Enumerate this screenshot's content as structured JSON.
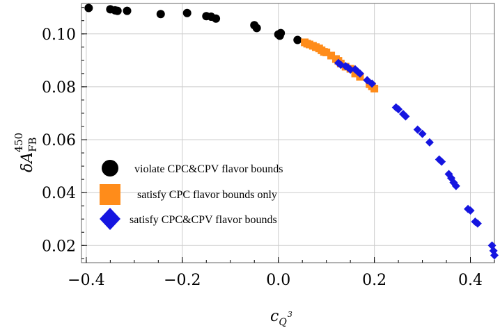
{
  "chart_data": {
    "type": "scatter",
    "xlabel": "c",
    "xlabel_sub": "Q",
    "xlabel_sup": "3",
    "ylabel": "δA",
    "ylabel_sub": "FB",
    "ylabel_sup": "450",
    "xlim": [
      -0.41,
      0.45
    ],
    "ylim": [
      0.0135,
      0.1115
    ],
    "xticks": [
      -0.4,
      -0.2,
      0.0,
      0.2,
      0.4
    ],
    "xtick_labels": [
      "−0.4",
      "−0.2",
      "0.0",
      "0.2",
      "0.4"
    ],
    "yticks": [
      0.02,
      0.04,
      0.06,
      0.08,
      0.1
    ],
    "ytick_labels": [
      "0.02",
      "0.04",
      "0.06",
      "0.08",
      "0.10"
    ],
    "grid": true,
    "legend_position": "lower-left",
    "series": [
      {
        "name": "violate CPC&CPV flavor bounds",
        "marker": "circle",
        "color": "#000000",
        "points": [
          [
            -0.395,
            0.1098
          ],
          [
            -0.35,
            0.1093
          ],
          [
            -0.34,
            0.1089
          ],
          [
            -0.335,
            0.1087
          ],
          [
            -0.315,
            0.1087
          ],
          [
            -0.245,
            0.1075
          ],
          [
            -0.19,
            0.1079
          ],
          [
            -0.15,
            0.1067
          ],
          [
            -0.14,
            0.1065
          ],
          [
            -0.13,
            0.1058
          ],
          [
            -0.05,
            0.1033
          ],
          [
            -0.045,
            0.1022
          ],
          [
            0.0,
            0.0998
          ],
          [
            0.003,
            0.0993
          ],
          [
            0.005,
            0.1003
          ],
          [
            0.04,
            0.0977
          ]
        ]
      },
      {
        "name": "satisfy CPC flavor bounds only",
        "marker": "square",
        "color": "#ff8c1a",
        "points": [
          [
            0.055,
            0.0968
          ],
          [
            0.06,
            0.0963
          ],
          [
            0.065,
            0.096
          ],
          [
            0.072,
            0.0955
          ],
          [
            0.078,
            0.095
          ],
          [
            0.085,
            0.0945
          ],
          [
            0.09,
            0.0938
          ],
          [
            0.095,
            0.0932
          ],
          [
            0.1,
            0.093
          ],
          [
            0.11,
            0.0918
          ],
          [
            0.12,
            0.0905
          ],
          [
            0.125,
            0.0898
          ],
          [
            0.13,
            0.0888
          ],
          [
            0.14,
            0.0876
          ],
          [
            0.15,
            0.0868
          ],
          [
            0.16,
            0.085
          ],
          [
            0.17,
            0.0838
          ],
          [
            0.19,
            0.081
          ],
          [
            0.195,
            0.0802
          ],
          [
            0.2,
            0.0793
          ]
        ]
      },
      {
        "name": "satisfy CPC&CPV flavor bounds",
        "marker": "diamond",
        "color": "#1515e0",
        "points": [
          [
            0.125,
            0.089
          ],
          [
            0.13,
            0.0883
          ],
          [
            0.14,
            0.0878
          ],
          [
            0.145,
            0.0873
          ],
          [
            0.15,
            0.0865
          ],
          [
            0.16,
            0.0866
          ],
          [
            0.165,
            0.0858
          ],
          [
            0.17,
            0.085
          ],
          [
            0.185,
            0.0825
          ],
          [
            0.195,
            0.0812
          ],
          [
            0.245,
            0.0722
          ],
          [
            0.25,
            0.0715
          ],
          [
            0.26,
            0.0697
          ],
          [
            0.265,
            0.0688
          ],
          [
            0.29,
            0.0638
          ],
          [
            0.3,
            0.0622
          ],
          [
            0.315,
            0.059
          ],
          [
            0.335,
            0.0525
          ],
          [
            0.34,
            0.0517
          ],
          [
            0.355,
            0.047
          ],
          [
            0.36,
            0.0455
          ],
          [
            0.365,
            0.0438
          ],
          [
            0.37,
            0.0425
          ],
          [
            0.395,
            0.0338
          ],
          [
            0.4,
            0.0332
          ],
          [
            0.41,
            0.029
          ],
          [
            0.415,
            0.0283
          ],
          [
            0.445,
            0.02
          ],
          [
            0.448,
            0.018
          ],
          [
            0.45,
            0.0163
          ]
        ]
      }
    ]
  }
}
